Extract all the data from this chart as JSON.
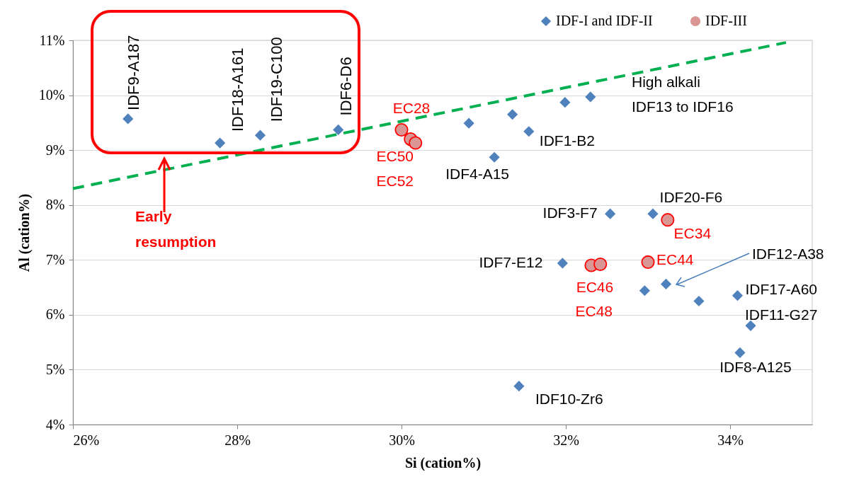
{
  "chart_data": {
    "type": "scatter",
    "xlabel": "Si (cation%)",
    "ylabel": "Al (cation%)",
    "xlim": [
      26,
      35
    ],
    "ylim": [
      4,
      11
    ],
    "xticks": [
      {
        "value": 26,
        "label": "26%"
      },
      {
        "value": 28,
        "label": "28%"
      },
      {
        "value": 30,
        "label": "30%"
      },
      {
        "value": 32,
        "label": "32%"
      },
      {
        "value": 34,
        "label": "34%"
      }
    ],
    "yticks": [
      {
        "value": 4,
        "label": "4%"
      },
      {
        "value": 5,
        "label": "5%"
      },
      {
        "value": 6,
        "label": "6%"
      },
      {
        "value": 7,
        "label": "7%"
      },
      {
        "value": 8,
        "label": "8%"
      },
      {
        "value": 9,
        "label": "9%"
      },
      {
        "value": 10,
        "label": "10%"
      },
      {
        "value": 11,
        "label": "11%"
      }
    ],
    "grid": "y",
    "legend": "top right",
    "series": [
      {
        "name": "IDF-I and IDF-II",
        "marker": "diamond",
        "color": "#4f81bd",
        "x": [
          26.67,
          27.79,
          28.28,
          29.23,
          30.82,
          31.13,
          31.35,
          31.55,
          31.99,
          32.3,
          32.54,
          33.06,
          31.96,
          32.96,
          33.22,
          33.62,
          34.09,
          34.25,
          34.12,
          31.43
        ],
        "values": [
          9.57,
          9.13,
          9.27,
          9.37,
          9.49,
          8.87,
          9.65,
          9.34,
          9.87,
          9.97,
          7.84,
          7.84,
          6.94,
          6.44,
          6.56,
          6.25,
          6.35,
          5.8,
          5.31,
          4.7
        ]
      },
      {
        "name": "IDF-III",
        "marker": "circle",
        "color": "#d99694",
        "x": [
          30.0,
          30.11,
          30.17,
          33.24,
          32.31,
          32.42,
          33.0
        ],
        "values": [
          9.37,
          9.2,
          9.13,
          7.73,
          6.9,
          6.92,
          6.96
        ]
      },
      {
        "type": "line",
        "color": "#00b050",
        "line_style": "dashed",
        "marker": "none",
        "x": [
          26,
          34.68
        ],
        "values": [
          8.3,
          10.96
        ]
      }
    ],
    "annotations": [
      {
        "text": "IDF9-A187",
        "x": 26.67,
        "y": 9.57
      },
      {
        "text": "IDF18-A161",
        "x": 27.79,
        "y": 9.13
      },
      {
        "text": "IDF19-C100",
        "x": 28.28,
        "y": 9.27
      },
      {
        "text": "IDF6-D6",
        "x": 29.23,
        "y": 9.37
      },
      {
        "text": "EC28",
        "x": 30.0,
        "y": 9.37
      },
      {
        "text": "EC50",
        "x": 30.11,
        "y": 9.2
      },
      {
        "text": "EC52",
        "x": 30.17,
        "y": 9.13
      },
      {
        "text": "IDF4-A15",
        "x": 31.13,
        "y": 8.87
      },
      {
        "text": "IDF1-B2",
        "x": 31.55,
        "y": 9.34
      },
      "High alkali\nIDF13 to IDF16",
      {
        "text": "IDF20-F6",
        "x": 33.06,
        "y": 7.84
      },
      {
        "text": "IDF3-F7",
        "x": 32.54,
        "y": 7.84
      },
      {
        "text": "EC34",
        "x": 33.24,
        "y": 7.73
      },
      {
        "text": "IDF7-E12",
        "x": 31.96,
        "y": 6.94
      },
      {
        "text": "EC46",
        "x": 32.31,
        "y": 6.9
      },
      {
        "text": "EC48",
        "x": 32.42,
        "y": 6.92
      },
      {
        "text": "EC44",
        "x": 33.0,
        "y": 6.96
      },
      "IDF12-A38",
      {
        "text": "IDF17-A60",
        "x": 34.09,
        "y": 6.35
      },
      {
        "text": "IDF11-G27",
        "x": 34.25,
        "y": 5.8
      },
      {
        "text": "IDF8-A125",
        "x": 34.12,
        "y": 5.31
      },
      {
        "text": "IDF10-Zr6",
        "x": 31.43,
        "y": 4.7
      },
      "Early\nresumption"
    ]
  }
}
